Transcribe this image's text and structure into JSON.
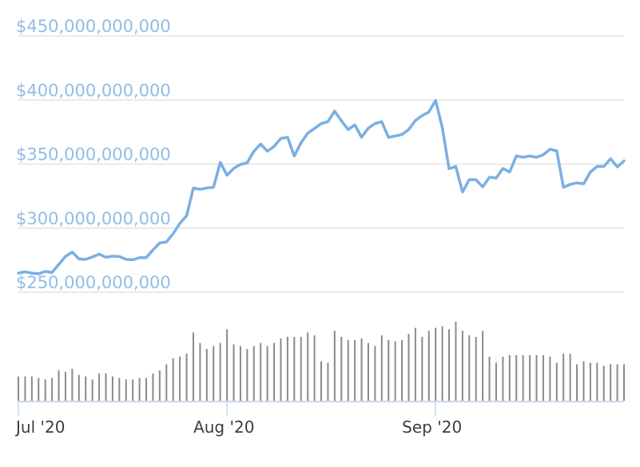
{
  "chart_data": {
    "type": "line",
    "x_tick_labels": [
      "Jul '20",
      "Aug '20",
      "Sep '20"
    ],
    "y_tick_labels": [
      "$250,000,000,000",
      "$300,000,000,000",
      "$350,000,000,000",
      "$400,000,000,000",
      "$450,000,000,000"
    ],
    "y_ticks": [
      250000000000,
      300000000000,
      350000000000,
      400000000000,
      450000000000
    ],
    "ylim": [
      250000000000,
      450000000000
    ],
    "x_ticks_day": [
      0,
      31,
      62
    ],
    "grid": true,
    "colors": {
      "line": "#7aafe3",
      "volume": "#8a8a8a",
      "ylabels": "#8fbde6",
      "grid": "#e3e3e3"
    },
    "series": [
      {
        "values": [
          264.9,
          265.9,
          264.9,
          264.3,
          266.2,
          265.3,
          271.7,
          277.9,
          281.3,
          275.9,
          275.6,
          277.5,
          279.7,
          277.2,
          278.1,
          277.8,
          275.6,
          275.3,
          276.9,
          276.9,
          282.9,
          288.4,
          289.2,
          295.6,
          303.7,
          309.7,
          331.3,
          330.3,
          331.3,
          331.9,
          351.3,
          341.3,
          346.6,
          349.7,
          351.0,
          360.0,
          365.6,
          360.0,
          363.8,
          370.0,
          370.9,
          356.3,
          366.6,
          374.1,
          377.8,
          381.6,
          383.1,
          391.3,
          383.8,
          376.9,
          380.6,
          370.9,
          378.1,
          381.6,
          383.1,
          370.9,
          371.9,
          373.1,
          376.9,
          384.0,
          387.8,
          390.6,
          399.7,
          378.4,
          346.3,
          348.1,
          328.1,
          337.8,
          337.8,
          332.2,
          339.7,
          339.1,
          346.6,
          343.8,
          356.3,
          355.3,
          356.3,
          355.3,
          357.2,
          361.6,
          360.3,
          331.9,
          334.1,
          335.3,
          334.7,
          343.8,
          348.1,
          348.1,
          354.1,
          347.8,
          352.5
        ]
      }
    ],
    "volume": {
      "values": [
        32,
        32,
        32,
        30,
        28,
        30,
        40,
        38,
        42,
        34,
        32,
        28,
        36,
        36,
        32,
        30,
        28,
        28,
        30,
        30,
        36,
        40,
        48,
        56,
        58,
        62,
        90,
        76,
        68,
        72,
        76,
        94,
        74,
        72,
        68,
        72,
        76,
        72,
        76,
        82,
        84,
        84,
        84,
        90,
        86,
        52,
        50,
        92,
        84,
        80,
        80,
        82,
        76,
        72,
        86,
        80,
        78,
        80,
        88,
        96,
        84,
        92,
        96,
        98,
        94,
        104,
        92,
        86,
        84,
        92,
        58,
        50,
        58,
        60,
        60,
        60,
        60,
        60,
        60,
        58,
        50,
        62,
        62,
        48,
        52,
        50,
        50,
        46,
        48,
        48,
        48
      ]
    }
  }
}
